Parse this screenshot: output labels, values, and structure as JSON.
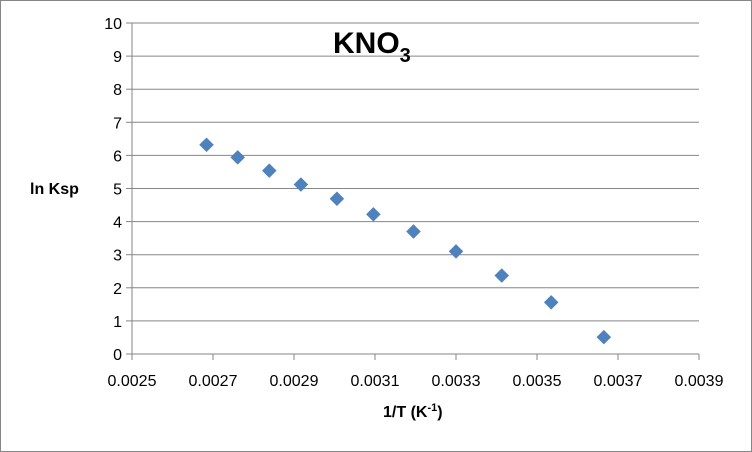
{
  "chart_data": {
    "type": "scatter",
    "title": "KNO",
    "title_subscript": "3",
    "xlabel": "1/T (K",
    "xlabel_superscript": "-1",
    "xlabel_suffix": ")",
    "ylabel": "ln Ksp",
    "xlim": [
      0.0025,
      0.0039
    ],
    "ylim": [
      0,
      10
    ],
    "x_ticks": [
      "0.0025",
      "0.0027",
      "0.0029",
      "0.0031",
      "0.0033",
      "0.0035",
      "0.0037",
      "0.0039"
    ],
    "y_ticks": [
      "0",
      "1",
      "2",
      "3",
      "4",
      "5",
      "6",
      "7",
      "8",
      "9",
      "10"
    ],
    "grid": "horizontal",
    "legend": "none",
    "marker": "diamond",
    "colors": {
      "marker": "#4F81BD",
      "grid": "#868686",
      "axis": "#868686"
    },
    "series": [
      {
        "x": [
          0.002684,
          0.002761,
          0.002839,
          0.002917,
          0.003006,
          0.003096,
          0.003195,
          0.0033,
          0.003413,
          0.003535,
          0.003665
        ],
        "y": [
          6.32,
          5.94,
          5.54,
          5.12,
          4.69,
          4.22,
          3.7,
          3.1,
          2.37,
          1.56,
          0.51
        ]
      }
    ]
  }
}
